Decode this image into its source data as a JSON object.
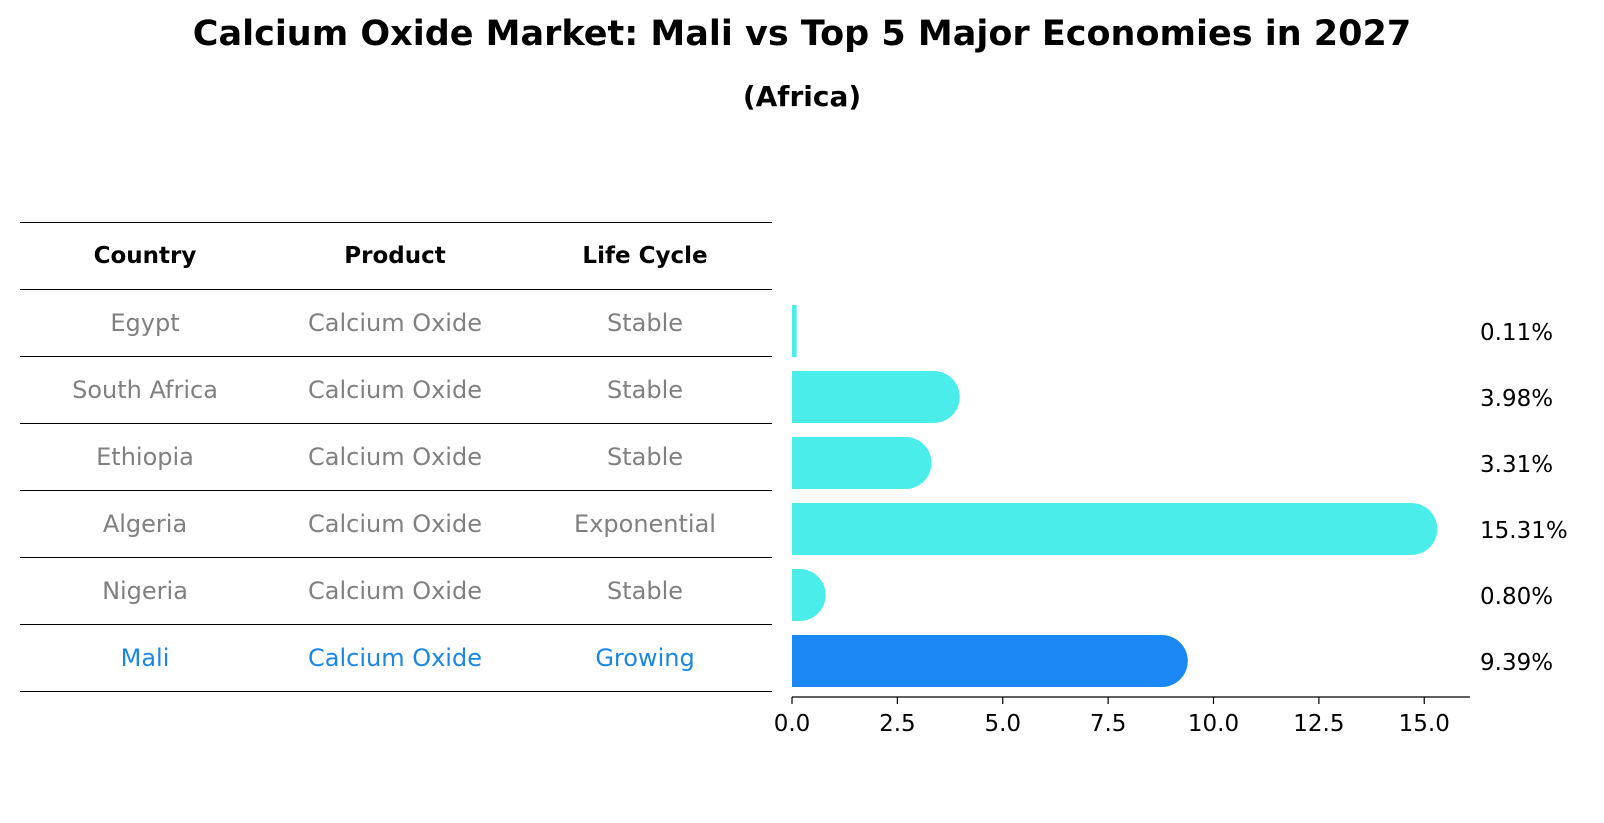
{
  "title": "Calcium Oxide Market: Mali vs Top 5 Major Economies in 2027",
  "subtitle": "(Africa)",
  "table": {
    "headers": [
      "Country",
      "Product",
      "Life Cycle"
    ],
    "rows": [
      [
        "Egypt",
        "Calcium Oxide",
        "Stable"
      ],
      [
        "South Africa",
        "Calcium Oxide",
        "Stable"
      ],
      [
        "Ethiopia",
        "Calcium Oxide",
        "Stable"
      ],
      [
        "Algeria",
        "Calcium Oxide",
        "Exponential"
      ],
      [
        "Nigeria",
        "Calcium Oxide",
        "Stable"
      ],
      [
        "Mali",
        "Calcium Oxide",
        "Growing"
      ]
    ]
  },
  "chart_data": {
    "type": "bar",
    "orientation": "horizontal",
    "categories": [
      "Egypt",
      "South Africa",
      "Ethiopia",
      "Algeria",
      "Nigeria",
      "Mali"
    ],
    "values": [
      0.11,
      3.98,
      3.31,
      15.31,
      0.8,
      9.39
    ],
    "value_labels": [
      "0.11%",
      "3.98%",
      "3.31%",
      "15.31%",
      "0.80%",
      "9.39%"
    ],
    "highlight": "Mali",
    "xlim": [
      0,
      16
    ],
    "xticks": [
      0.0,
      2.5,
      5.0,
      7.5,
      10.0,
      12.5,
      15.0
    ],
    "xtick_labels": [
      "0.0",
      "2.5",
      "5.0",
      "7.5",
      "10.0",
      "12.5",
      "15.0"
    ],
    "colors": {
      "default": "#4aedea",
      "highlight": "#1a87f5",
      "highlight_text": "#1a87e6"
    }
  }
}
